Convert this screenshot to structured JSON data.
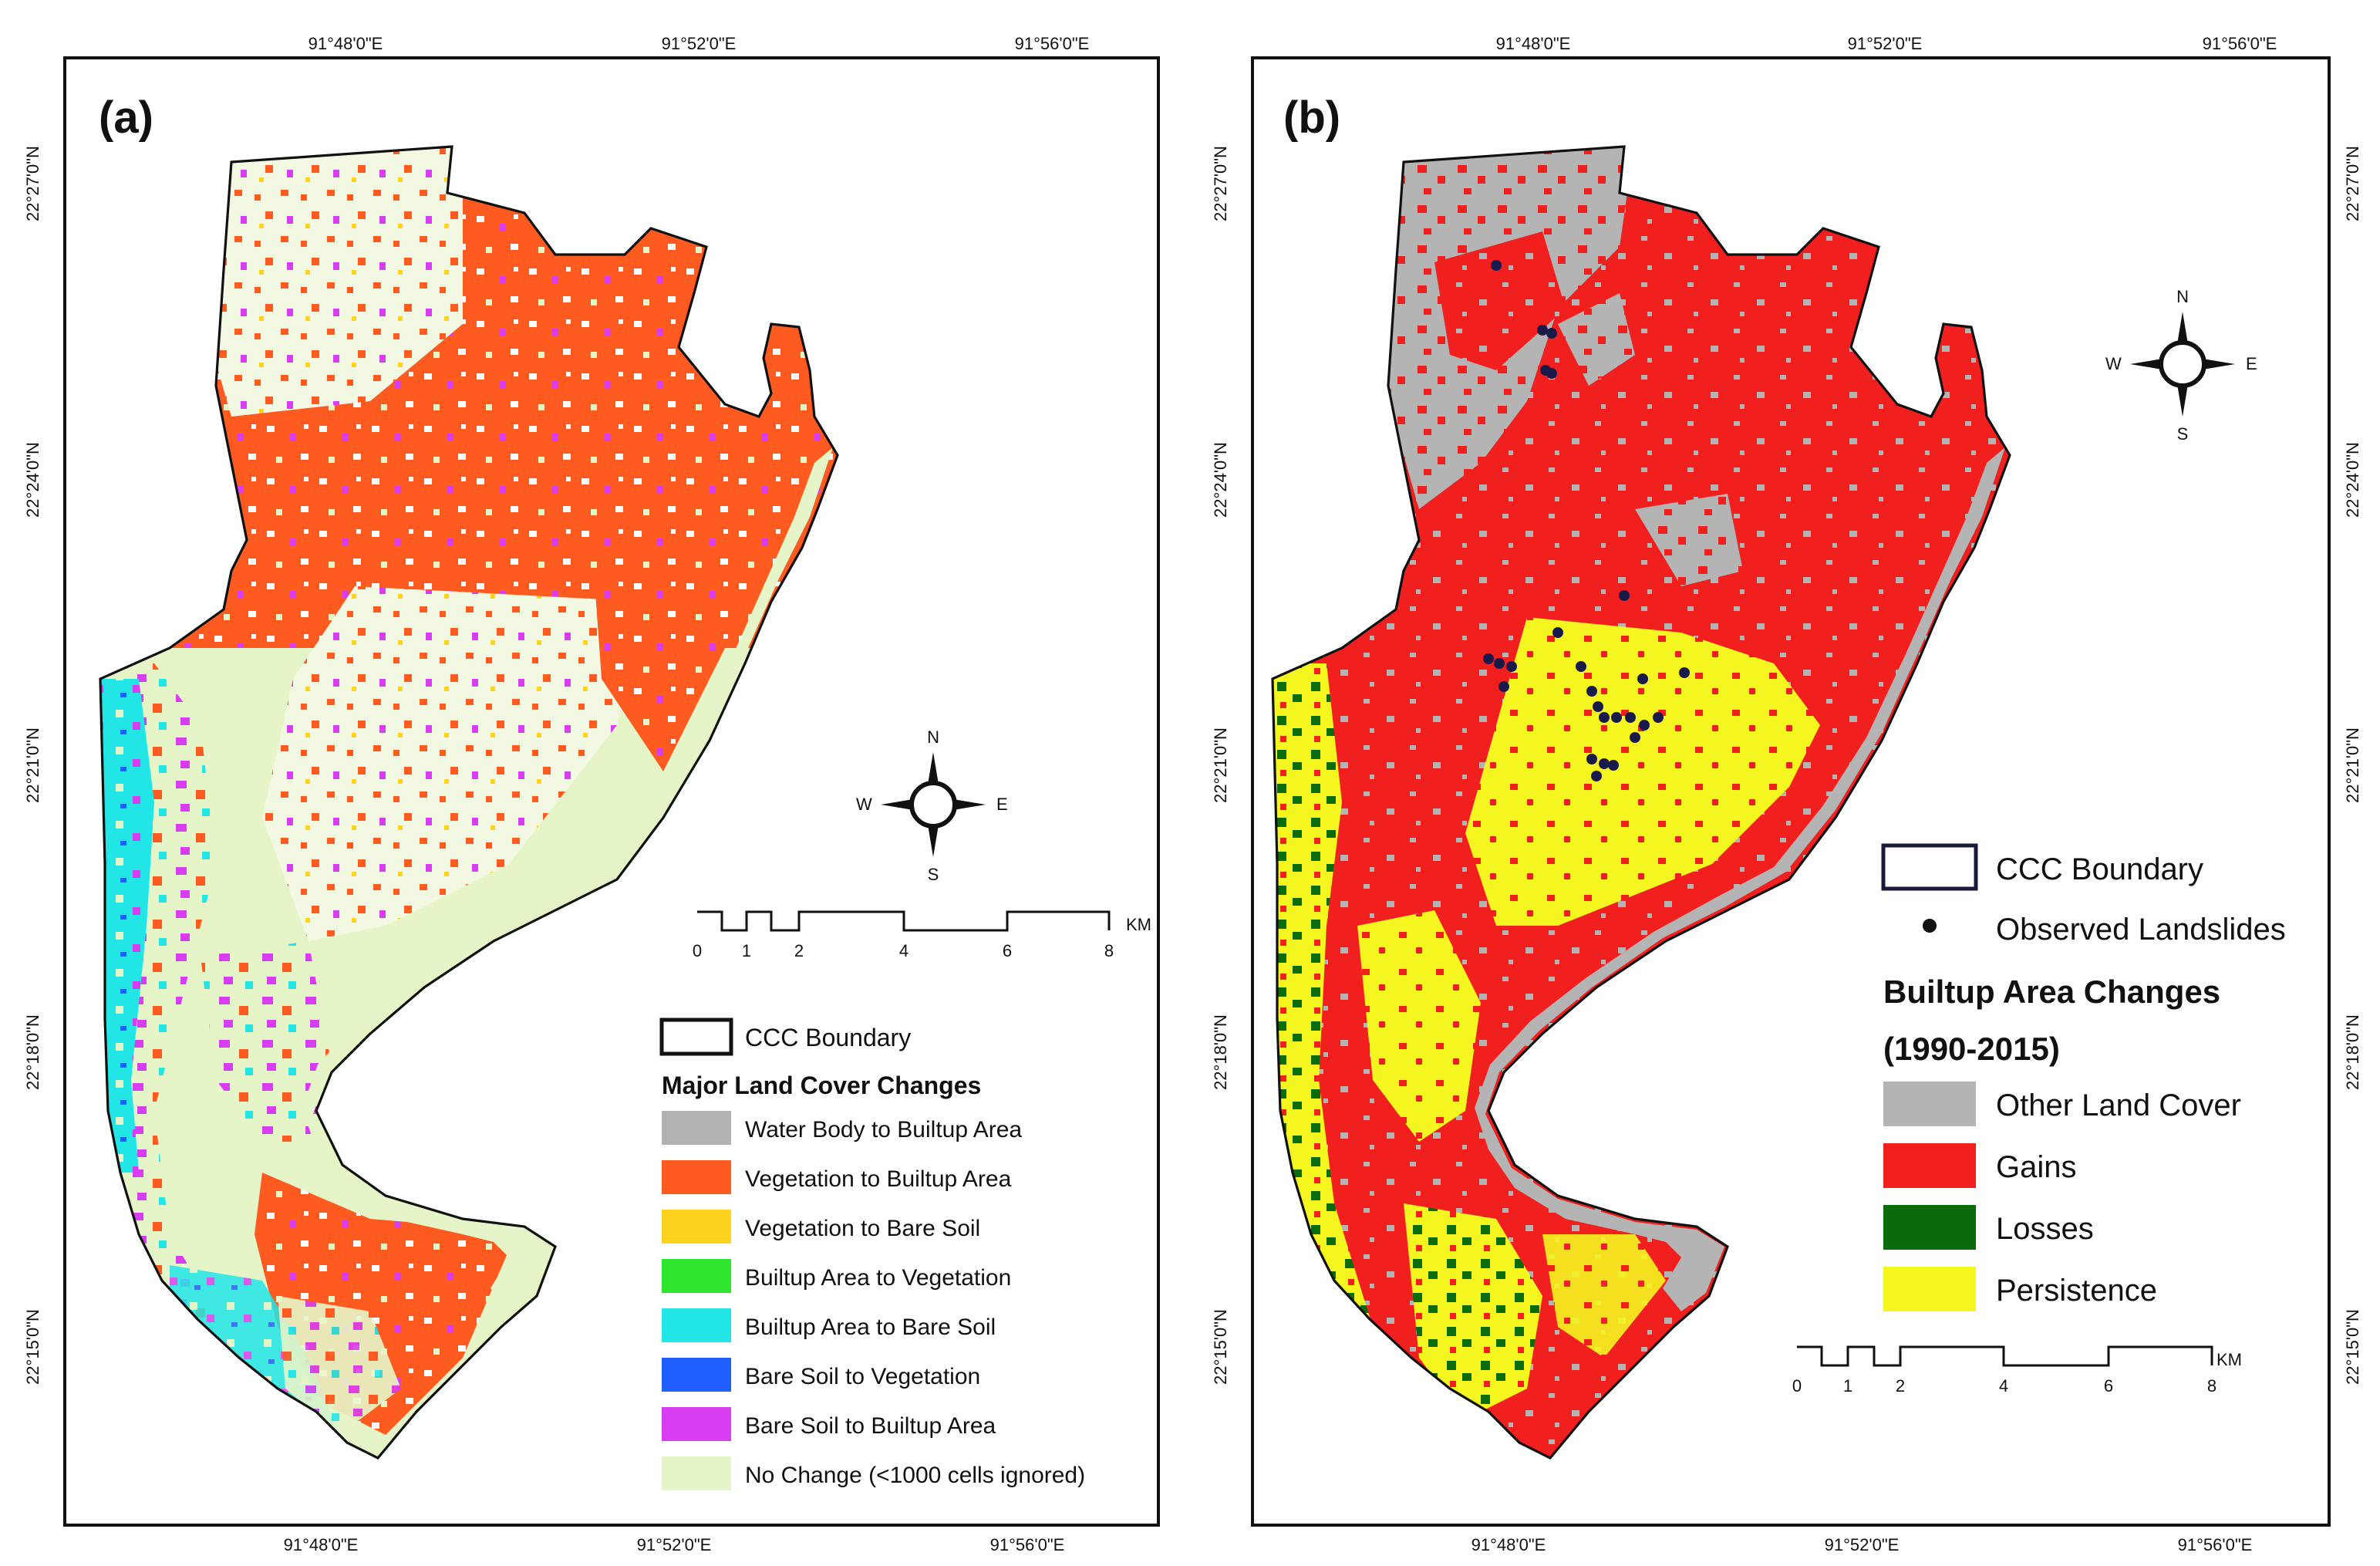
{
  "panel_a": {
    "label": "(a)",
    "lon_ticks": [
      "91°48'0\"E",
      "91°52'0\"E",
      "91°56'0\"E"
    ],
    "lat_ticks": [
      "22°27'0\"N",
      "22°24'0\"N",
      "22°21'0\"N",
      "22°18'0\"N",
      "22°15'0\"N"
    ],
    "compass": {
      "n": "N",
      "s": "S",
      "e": "E",
      "w": "W"
    },
    "scale": {
      "ticks": [
        "0",
        "1",
        "2",
        "4",
        "6",
        "8"
      ],
      "unit": "KM"
    },
    "legend": {
      "boundary_label": "CCC Boundary",
      "title": "Major Land Cover Changes",
      "items": [
        {
          "label": "Water Body to Builtup Area",
          "color": "#b2b2b2"
        },
        {
          "label": "Vegetation to Builtup Area",
          "color": "#ff5a1f"
        },
        {
          "label": "Vegetation to Bare Soil",
          "color": "#ffd21f"
        },
        {
          "label": "Builtup Area to Vegetation",
          "color": "#2ee62e"
        },
        {
          "label": "Builtup Area to Bare Soil",
          "color": "#22e6e6"
        },
        {
          "label": "Bare Soil to Vegetation",
          "color": "#1f5fff"
        },
        {
          "label": "Bare Soil to Builtup Area",
          "color": "#d93df2"
        },
        {
          "label": "No Change (<1000 cells ignored)",
          "color": "#e6f5c8"
        }
      ]
    }
  },
  "panel_b": {
    "label": "(b)",
    "lon_ticks": [
      "91°48'0\"E",
      "91°52'0\"E",
      "91°56'0\"E"
    ],
    "lat_ticks": [
      "22°27'0\"N",
      "22°24'0\"N",
      "22°21'0\"N",
      "22°18'0\"N",
      "22°15'0\"N"
    ],
    "compass": {
      "n": "N",
      "s": "S",
      "e": "E",
      "w": "W"
    },
    "scale": {
      "ticks": [
        "0",
        "1",
        "2",
        "4",
        "6",
        "8"
      ],
      "unit": "KM"
    },
    "legend": {
      "boundary_label": "CCC Boundary",
      "landslides_label": "Observed Landslides",
      "title_line1": "Builtup Area Changes",
      "title_line2": "(1990-2015)",
      "items": [
        {
          "label": "Other Land Cover",
          "color": "#b4b4b4"
        },
        {
          "label": "Gains",
          "color": "#f21f1f"
        },
        {
          "label": "Losses",
          "color": "#0a6b0a"
        },
        {
          "label": "Persistence",
          "color": "#f5f51f"
        }
      ]
    }
  }
}
